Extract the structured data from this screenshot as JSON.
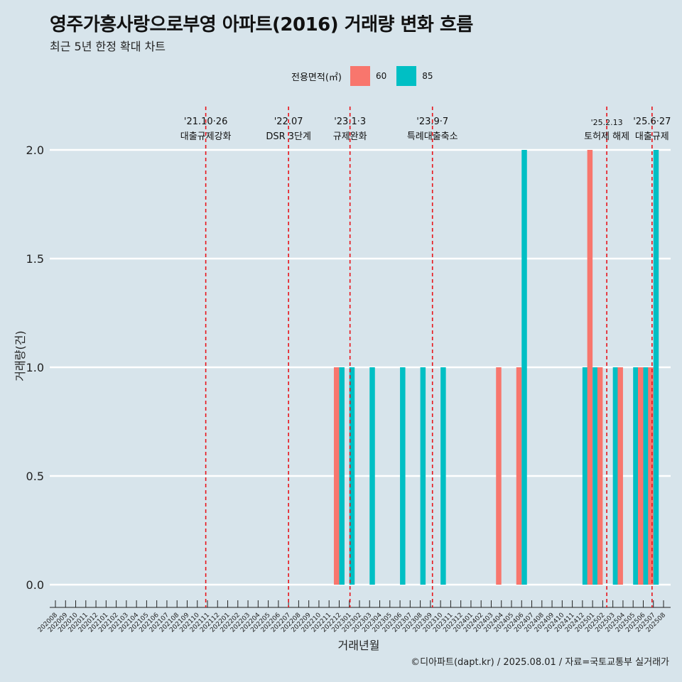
{
  "title": "영주가흥사랑으로부영 아파트(2016) 거래량 변화 흐름",
  "subtitle": "최근 5년 한정 확대 차트",
  "caption": "©디아파트(dapt.kr) / 2025.08.01 / 자료=국토교통부 실거래가",
  "legend": {
    "title": "전용면적(㎡)",
    "items": [
      {
        "label": "60",
        "color": "#f8766d"
      },
      {
        "label": "85",
        "color": "#00bfc4"
      }
    ]
  },
  "chart_data": {
    "type": "bar",
    "xlabel": "거래년월",
    "ylabel": "거래량(건)",
    "ylim": [
      0,
      2.0
    ],
    "yticks": [
      "0.0",
      "0.5",
      "1.0",
      "1.5",
      "2.0"
    ],
    "categories": [
      "202008",
      "202009",
      "202010",
      "202011",
      "202012",
      "202101",
      "202102",
      "202103",
      "202104",
      "202105",
      "202106",
      "202107",
      "202108",
      "202109",
      "202110",
      "202111",
      "202112",
      "202201",
      "202202",
      "202203",
      "202204",
      "202205",
      "202206",
      "202207",
      "202208",
      "202209",
      "202210",
      "202211",
      "202212",
      "202301",
      "202302",
      "202303",
      "202304",
      "202305",
      "202306",
      "202307",
      "202308",
      "202309",
      "202310",
      "202311",
      "202312",
      "202401",
      "202402",
      "202403",
      "202404",
      "202405",
      "202406",
      "202407",
      "202408",
      "202409",
      "202410",
      "202411",
      "202412",
      "202501",
      "202502",
      "202503",
      "202504",
      "202505",
      "202506",
      "202507",
      "202508"
    ],
    "bars": [
      {
        "month": "202212",
        "series": "60",
        "value": 1
      },
      {
        "month": "202212",
        "series": "85",
        "value": 1
      },
      {
        "month": "202301",
        "series": "85",
        "value": 1
      },
      {
        "month": "202303",
        "series": "85",
        "value": 1
      },
      {
        "month": "202306",
        "series": "85",
        "value": 1
      },
      {
        "month": "202308",
        "series": "85",
        "value": 1
      },
      {
        "month": "202310",
        "series": "85",
        "value": 1
      },
      {
        "month": "202404",
        "series": "60",
        "value": 1
      },
      {
        "month": "202406",
        "series": "60",
        "value": 1
      },
      {
        "month": "202406",
        "series": "85",
        "value": 2
      },
      {
        "month": "202412",
        "series": "85",
        "value": 1
      },
      {
        "month": "202501",
        "series": "60",
        "value": 2
      },
      {
        "month": "202501",
        "series": "85",
        "value": 1
      },
      {
        "month": "202502",
        "series": "60",
        "value": 1
      },
      {
        "month": "202503",
        "series": "85",
        "value": 1
      },
      {
        "month": "202504",
        "series": "60",
        "value": 1
      },
      {
        "month": "202505",
        "series": "85",
        "value": 1
      },
      {
        "month": "202506",
        "series": "60",
        "value": 1
      },
      {
        "month": "202506",
        "series": "85",
        "value": 1
      },
      {
        "month": "202507",
        "series": "60",
        "value": 1
      },
      {
        "month": "202507",
        "series": "85",
        "value": 2
      }
    ],
    "annotations": [
      {
        "date": "2021-10-26",
        "line1": "'21.10·26",
        "line2": "대출규제강화"
      },
      {
        "date": "2022-07-01",
        "line1": "'22.07",
        "line2": "DSR 3단계"
      },
      {
        "date": "2023-01-03",
        "line1": "'23.1·3",
        "line2": "규제완화"
      },
      {
        "date": "2023-09-07",
        "line1": "'23.9·7",
        "line2": "특례대출축소"
      },
      {
        "date": "2025-02-13",
        "line1": "'25.2.13",
        "line2": "토허제 해제",
        "small": true
      },
      {
        "date": "2025-06-27",
        "line1": "'25.6·27",
        "line2": "대출규제"
      }
    ]
  }
}
